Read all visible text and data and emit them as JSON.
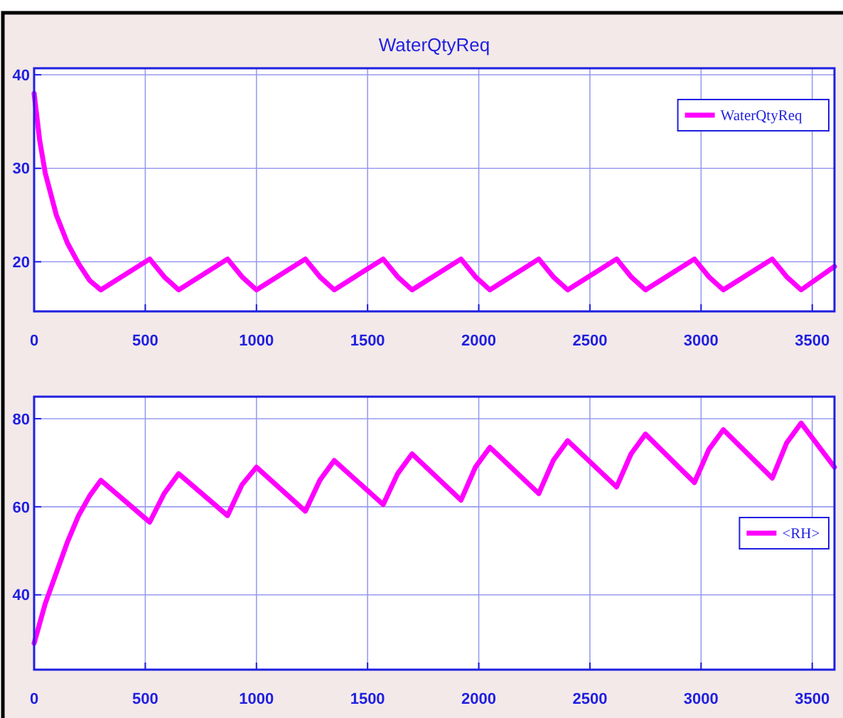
{
  "chart_data": [
    {
      "type": "line",
      "title": "WaterQtyReq",
      "xlim": [
        0,
        3600
      ],
      "xticks": [
        0,
        500,
        1000,
        1500,
        2000,
        2500,
        3000,
        3500
      ],
      "ylim": [
        14.7,
        40.7
      ],
      "yticks": [
        20,
        30,
        40
      ],
      "grid": true,
      "legend": "top right",
      "series": [
        {
          "name": "WaterQtyReq",
          "color": "#ff00ff",
          "x": [
            0,
            25,
            50,
            100,
            150,
            200,
            250,
            300,
            520,
            585,
            650,
            870,
            935,
            1000,
            1220,
            1285,
            1350,
            1570,
            1635,
            1700,
            1920,
            1985,
            2050,
            2270,
            2335,
            2400,
            2620,
            2685,
            2750,
            2970,
            3035,
            3100,
            3320,
            3385,
            3450,
            3600
          ],
          "values": [
            38,
            33,
            29.5,
            25,
            22,
            19.8,
            18,
            17,
            20.3,
            18.4,
            17,
            20.3,
            18.4,
            17,
            20.3,
            18.4,
            17,
            20.3,
            18.4,
            17,
            20.3,
            18.4,
            17,
            20.3,
            18.4,
            17,
            20.3,
            18.4,
            17,
            20.3,
            18.4,
            17,
            20.3,
            18.4,
            17,
            19.5
          ]
        }
      ]
    },
    {
      "type": "line",
      "xlim": [
        0,
        3600
      ],
      "xticks": [
        0,
        500,
        1000,
        1500,
        2000,
        2500,
        3000,
        3500
      ],
      "ylim": [
        23,
        85
      ],
      "yticks": [
        40,
        60,
        80
      ],
      "grid": true,
      "legend": "right",
      "series": [
        {
          "name": "<RH>",
          "color": "#ff00ff",
          "x": [
            0,
            50,
            100,
            150,
            200,
            250,
            300,
            520,
            585,
            650,
            870,
            935,
            1000,
            1220,
            1285,
            1350,
            1570,
            1635,
            1700,
            1920,
            1985,
            2050,
            2270,
            2335,
            2400,
            2620,
            2685,
            2750,
            2970,
            3035,
            3100,
            3320,
            3385,
            3450,
            3600
          ],
          "values": [
            29,
            38,
            45,
            52,
            58,
            62.5,
            66,
            56.5,
            63,
            67.5,
            58,
            65,
            69,
            59,
            66,
            70.5,
            60.5,
            67.5,
            72,
            61.5,
            69,
            73.5,
            63,
            70.5,
            75,
            64.5,
            72,
            76.5,
            65.5,
            73,
            77.5,
            66.5,
            74.5,
            79,
            69
          ]
        }
      ]
    }
  ]
}
